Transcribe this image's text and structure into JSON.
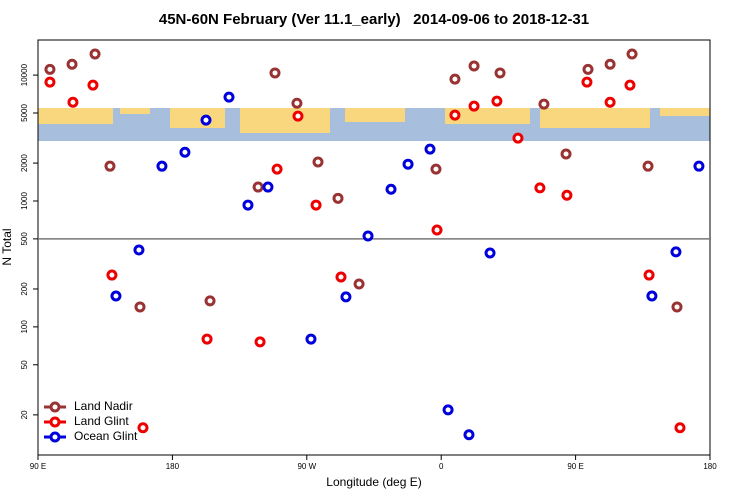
{
  "chart_data": {
    "type": "scatter",
    "title": "45N-60N February (Ver 11.1_early)   2014-09-06 to 2018-12-31",
    "xlabel": "Longitude (deg E)",
    "ylabel": "N Total",
    "xlim": [
      90,
      540
    ],
    "ylim": [
      9.6,
      19000
    ],
    "log_y": true,
    "xticks": [
      {
        "value": 90,
        "label": "90 E"
      },
      180,
      {
        "value": 270,
        "label": "90 W"
      },
      {
        "value": 360,
        "label": "0"
      },
      {
        "value": 450,
        "label": "90 E"
      },
      {
        "value": 540,
        "label": "180"
      }
    ],
    "yticks": [
      20,
      50,
      100,
      200,
      500,
      1000,
      2000,
      5000,
      10000
    ],
    "hline": 500,
    "legend": "bottom-left",
    "series": [
      {
        "name": "Land Nadir",
        "color": "#993333",
        "x": [
          98.0,
          112.8,
          128.2,
          138.2,
          158.3,
          205.2,
          237.4,
          248.7,
          263.4,
          277.5,
          290.9,
          305.0,
          356.5,
          369.2,
          382.0,
          399.4,
          428.8,
          443.6,
          458.3,
          473.1,
          487.8,
          498.5,
          517.9
        ],
        "values": [
          11100,
          12200,
          14700,
          1890,
          144,
          161,
          1290,
          10400,
          5980,
          2040,
          1050,
          219,
          1790,
          9290,
          11800,
          10400,
          5880,
          2360,
          11100,
          12200,
          14700,
          1890,
          144
        ]
      },
      {
        "name": "Land Glint",
        "color": "#ee0000",
        "x": [
          98.0,
          113.4,
          126.8,
          139.5,
          160.3,
          203.2,
          238.7,
          250.1,
          264.1,
          276.2,
          292.9,
          357.2,
          369.2,
          382.0,
          397.3,
          411.4,
          426.1,
          444.2,
          457.6,
          473.1,
          486.4,
          499.2,
          519.9
        ],
        "values": [
          8790,
          6090,
          8320,
          258,
          15.8,
          80,
          76,
          1790,
          4720,
          928,
          249,
          588,
          4810,
          5670,
          6210,
          3160,
          1270,
          1110,
          8790,
          6090,
          8320,
          258,
          15.8
        ]
      },
      {
        "name": "Ocean Glint",
        "color": "#0000dd",
        "x": [
          142.2,
          157.6,
          173.0,
          188.4,
          202.5,
          217.9,
          230.6,
          244.0,
          272.8,
          296.2,
          311.0,
          326.4,
          337.8,
          352.5,
          364.6,
          378.6,
          392.7,
          501.1,
          517.2,
          532.6
        ],
        "values": [
          176,
          408,
          1890,
          2440,
          4390,
          6680,
          928,
          1290,
          80,
          173,
          527,
          1240,
          1960,
          2580,
          21.9,
          13.9,
          386,
          176,
          394,
          1890
        ]
      }
    ]
  }
}
